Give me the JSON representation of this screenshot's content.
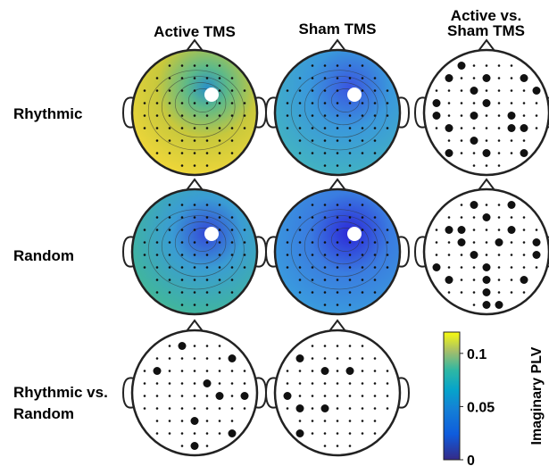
{
  "columns": [
    "Active TMS",
    "Sham TMS",
    "Active vs. Sham TMS"
  ],
  "rows": [
    "Rhythmic",
    "Random",
    "Rhythmic vs. Random"
  ],
  "colorbar": {
    "label": "Imaginary PLV",
    "lim": [
      0,
      0.12
    ],
    "ticks": [
      0,
      0.05,
      0.1
    ]
  }
}
